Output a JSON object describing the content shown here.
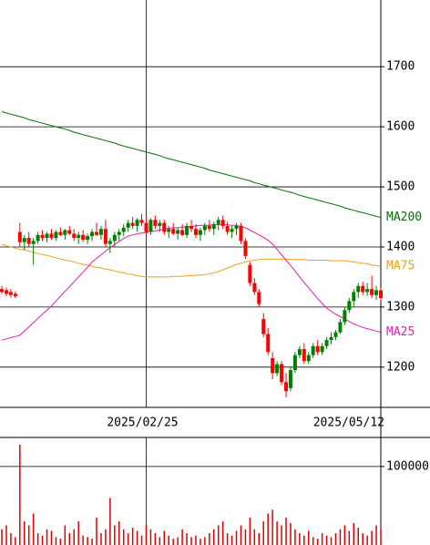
{
  "chart_data": [
    {
      "type": "candlestick",
      "categories": [
        null,
        null,
        null,
        null,
        null,
        null,
        null,
        null,
        null,
        null,
        null,
        null,
        null,
        null,
        null,
        null,
        null,
        null,
        null,
        null,
        null,
        null,
        null,
        null,
        null,
        null,
        null,
        null,
        null,
        null,
        null,
        null,
        "2025/02/25",
        null,
        null,
        null,
        null,
        null,
        null,
        null,
        null,
        null,
        null,
        null,
        null,
        null,
        null,
        null,
        null,
        null,
        null,
        null,
        null,
        null,
        null,
        null,
        null,
        null,
        null,
        null,
        null,
        null,
        null,
        null,
        null,
        null,
        null,
        null,
        null,
        null,
        null,
        null,
        null,
        null,
        null,
        null,
        null,
        null,
        null,
        null,
        null,
        null,
        null,
        null,
        "2025/05/12"
      ],
      "ohlc": [
        [
          1330,
          1335,
          1322,
          1325
        ],
        [
          1328,
          1332,
          1318,
          1322
        ],
        [
          1325,
          1330,
          1316,
          1320
        ],
        [
          1322,
          1326,
          1315,
          1318
        ],
        [
          1425,
          1440,
          1400,
          1408
        ],
        [
          1408,
          1420,
          1395,
          1415
        ],
        [
          1415,
          1425,
          1400,
          1405
        ],
        [
          1405,
          1415,
          1370,
          1410
        ],
        [
          1410,
          1425,
          1405,
          1420
        ],
        [
          1420,
          1428,
          1410,
          1415
        ],
        [
          1415,
          1425,
          1408,
          1422
        ],
        [
          1422,
          1430,
          1412,
          1415
        ],
        [
          1415,
          1428,
          1410,
          1425
        ],
        [
          1425,
          1432,
          1418,
          1420
        ],
        [
          1420,
          1430,
          1412,
          1428
        ],
        [
          1428,
          1435,
          1420,
          1422
        ],
        [
          1422,
          1430,
          1410,
          1415
        ],
        [
          1415,
          1425,
          1405,
          1420
        ],
        [
          1420,
          1428,
          1408,
          1412
        ],
        [
          1412,
          1422,
          1405,
          1418
        ],
        [
          1418,
          1430,
          1410,
          1425
        ],
        [
          1425,
          1440,
          1418,
          1420
        ],
        [
          1420,
          1435,
          1412,
          1430
        ],
        [
          1430,
          1445,
          1400,
          1405
        ],
        [
          1405,
          1415,
          1390,
          1410
        ],
        [
          1410,
          1425,
          1400,
          1420
        ],
        [
          1420,
          1430,
          1410,
          1425
        ],
        [
          1425,
          1438,
          1418,
          1432
        ],
        [
          1432,
          1445,
          1425,
          1440
        ],
        [
          1440,
          1450,
          1430,
          1435
        ],
        [
          1435,
          1448,
          1425,
          1445
        ],
        [
          1445,
          1455,
          1435,
          1440
        ],
        [
          1440,
          1450,
          1420,
          1425
        ],
        [
          1425,
          1448,
          1420,
          1445
        ],
        [
          1445,
          1452,
          1430,
          1435
        ],
        [
          1435,
          1445,
          1425,
          1440
        ],
        [
          1440,
          1445,
          1420,
          1425
        ],
        [
          1425,
          1435,
          1415,
          1430
        ],
        [
          1430,
          1440,
          1420,
          1422
        ],
        [
          1422,
          1432,
          1412,
          1428
        ],
        [
          1428,
          1438,
          1418,
          1420
        ],
        [
          1420,
          1440,
          1415,
          1435
        ],
        [
          1435,
          1445,
          1425,
          1430
        ],
        [
          1430,
          1438,
          1415,
          1420
        ],
        [
          1420,
          1432,
          1410,
          1428
        ],
        [
          1428,
          1440,
          1420,
          1435
        ],
        [
          1435,
          1445,
          1425,
          1430
        ],
        [
          1430,
          1442,
          1420,
          1438
        ],
        [
          1438,
          1450,
          1428,
          1445
        ],
        [
          1445,
          1452,
          1430,
          1435
        ],
        [
          1435,
          1442,
          1420,
          1425
        ],
        [
          1425,
          1435,
          1415,
          1430
        ],
        [
          1430,
          1440,
          1420,
          1435
        ],
        [
          1435,
          1440,
          1405,
          1410
        ],
        [
          1410,
          1415,
          1380,
          1385
        ],
        [
          1370,
          1375,
          1335,
          1340
        ],
        [
          1340,
          1348,
          1320,
          1325
        ],
        [
          1325,
          1330,
          1300,
          1305
        ],
        [
          1280,
          1290,
          1250,
          1255
        ],
        [
          1255,
          1265,
          1220,
          1225
        ],
        [
          1215,
          1225,
          1180,
          1190
        ],
        [
          1190,
          1210,
          1185,
          1205
        ],
        [
          1205,
          1210,
          1170,
          1175
        ],
        [
          1175,
          1190,
          1150,
          1160
        ],
        [
          1165,
          1200,
          1160,
          1195
        ],
        [
          1195,
          1225,
          1190,
          1220
        ],
        [
          1220,
          1235,
          1215,
          1230
        ],
        [
          1230,
          1240,
          1205,
          1210
        ],
        [
          1210,
          1225,
          1205,
          1220
        ],
        [
          1220,
          1240,
          1215,
          1235
        ],
        [
          1235,
          1245,
          1220,
          1225
        ],
        [
          1225,
          1240,
          1220,
          1235
        ],
        [
          1235,
          1250,
          1230,
          1245
        ],
        [
          1245,
          1258,
          1238,
          1250
        ],
        [
          1250,
          1262,
          1245,
          1258
        ],
        [
          1258,
          1280,
          1255,
          1275
        ],
        [
          1275,
          1300,
          1270,
          1295
        ],
        [
          1295,
          1315,
          1290,
          1310
        ],
        [
          1310,
          1330,
          1300,
          1325
        ],
        [
          1325,
          1340,
          1315,
          1335
        ],
        [
          1335,
          1342,
          1320,
          1325
        ],
        [
          1325,
          1340,
          1318,
          1330
        ],
        [
          1330,
          1352,
          1315,
          1320
        ],
        [
          1320,
          1335,
          1312,
          1328
        ],
        [
          1328,
          1332,
          1310,
          1315
        ]
      ],
      "up_color": "#008000",
      "down_color": "#ff0000",
      "series": [
        {
          "name": "MA200",
          "color": "#007000",
          "values": [
            1625,
            1623,
            1621,
            1619,
            1617,
            1615,
            1612,
            1610,
            1608,
            1606,
            1604,
            1602,
            1600,
            1598,
            1596,
            1594,
            1591,
            1589,
            1587,
            1585,
            1583,
            1581,
            1579,
            1577,
            1575,
            1573,
            1570,
            1568,
            1566,
            1564,
            1562,
            1560,
            1558,
            1556,
            1554,
            1552,
            1549,
            1547,
            1545,
            1543,
            1541,
            1539,
            1537,
            1535,
            1533,
            1531,
            1528,
            1526,
            1524,
            1522,
            1520,
            1518,
            1516,
            1514,
            1512,
            1510,
            1507,
            1505,
            1503,
            1501,
            1499,
            1497,
            1495,
            1493,
            1491,
            1489,
            1486,
            1484,
            1482,
            1480,
            1478,
            1476,
            1474,
            1472,
            1470,
            1468,
            1465,
            1463,
            1461,
            1459,
            1457,
            1455,
            1453,
            1451,
            1449
          ]
        },
        {
          "name": "MA75",
          "color": "#f0a020",
          "values": [
            1404,
            1402,
            1400,
            1398,
            1396,
            1395,
            1393,
            1391,
            1389,
            1387,
            1386,
            1384,
            1382,
            1380,
            1378,
            1377,
            1375,
            1373,
            1371,
            1370,
            1368,
            1366,
            1365,
            1363,
            1362,
            1360,
            1358,
            1357,
            1355,
            1354,
            1352,
            1351,
            1350,
            1350,
            1350,
            1350,
            1350,
            1350,
            1351,
            1351,
            1351,
            1352,
            1352,
            1353,
            1353,
            1354,
            1355,
            1357,
            1359,
            1362,
            1365,
            1368,
            1371,
            1373,
            1375,
            1377,
            1378,
            1379,
            1380,
            1380,
            1380,
            1380,
            1380,
            1380,
            1379,
            1379,
            1379,
            1379,
            1378,
            1378,
            1378,
            1378,
            1378,
            1377,
            1377,
            1377,
            1377,
            1376,
            1375,
            1374,
            1373,
            1372,
            1370,
            1369,
            1368
          ]
        },
        {
          "name": "MA25",
          "color": "#e020b0",
          "values": [
            1245,
            1247,
            1249,
            1251,
            1253,
            1260,
            1267,
            1274,
            1281,
            1288,
            1295,
            1302,
            1310,
            1318,
            1326,
            1334,
            1342,
            1350,
            1358,
            1366,
            1375,
            1381,
            1387,
            1393,
            1399,
            1404,
            1409,
            1414,
            1418,
            1420,
            1422,
            1423,
            1424,
            1426,
            1427,
            1428,
            1430,
            1431,
            1432,
            1432,
            1433,
            1434,
            1434,
            1435,
            1436,
            1436,
            1436,
            1437,
            1437,
            1437,
            1437,
            1436,
            1436,
            1434,
            1432,
            1428,
            1424,
            1420,
            1416,
            1411,
            1405,
            1396,
            1387,
            1378,
            1369,
            1360,
            1350,
            1341,
            1332,
            1323,
            1314,
            1306,
            1298,
            1293,
            1288,
            1284,
            1280,
            1276,
            1272,
            1269,
            1266,
            1264,
            1262,
            1260,
            1258
          ]
        }
      ],
      "ylim": [
        1133,
        1811
      ],
      "yticks": [
        1200,
        1300,
        1400,
        1500,
        1600,
        1700
      ],
      "grid": true
    },
    {
      "type": "bar",
      "color": "#e00000",
      "values": [
        20000,
        25000,
        15000,
        10000,
        128000,
        30000,
        25000,
        40000,
        15000,
        12000,
        20000,
        18000,
        10000,
        8000,
        25000,
        15000,
        20000,
        30000,
        12000,
        10000,
        8000,
        35000,
        15000,
        20000,
        60000,
        25000,
        30000,
        20000,
        15000,
        22000,
        18000,
        12000,
        25000,
        20000,
        15000,
        10000,
        18000,
        12000,
        8000,
        10000,
        20000,
        15000,
        10000,
        12000,
        8000,
        10000,
        15000,
        20000,
        25000,
        30000,
        15000,
        12000,
        18000,
        25000,
        20000,
        35000,
        20000,
        15000,
        30000,
        40000,
        45000,
        30000,
        25000,
        35000,
        28000,
        20000,
        15000,
        12000,
        18000,
        10000,
        8000,
        15000,
        12000,
        10000,
        15000,
        20000,
        25000,
        18000,
        28000,
        22000,
        15000,
        12000,
        18000,
        25000,
        20000
      ],
      "ylim": [
        0,
        137000
      ],
      "yticks": [
        100000
      ],
      "grid": true
    }
  ]
}
